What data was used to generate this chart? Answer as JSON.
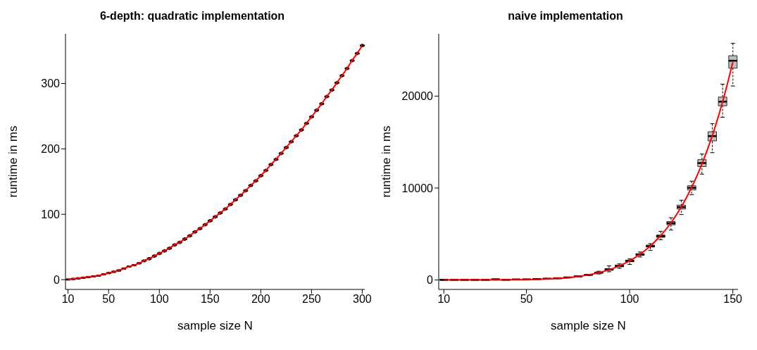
{
  "chart_data": [
    {
      "type": "box",
      "color": "#bebebe",
      "title": "6-depth: quadratic implementation",
      "xlabel": "sample size N",
      "ylabel": "runtime in ms",
      "ylim": [
        -15,
        376
      ],
      "yticks": [
        0,
        100,
        200,
        300
      ],
      "categories": [
        "10",
        null,
        null,
        null,
        null,
        null,
        null,
        null,
        "50",
        null,
        null,
        null,
        null,
        null,
        null,
        null,
        null,
        null,
        "100",
        null,
        null,
        null,
        null,
        null,
        null,
        null,
        null,
        null,
        "150",
        null,
        null,
        null,
        null,
        null,
        null,
        null,
        null,
        null,
        "200",
        null,
        null,
        null,
        null,
        null,
        null,
        null,
        null,
        null,
        "250",
        null,
        null,
        null,
        null,
        null,
        null,
        null,
        null,
        null,
        "300"
      ],
      "boxes": [
        {
          "low": 0,
          "q1": 0,
          "median": 0,
          "q3": 1,
          "high": 1
        },
        {
          "low": 0,
          "q1": 0,
          "median": 1,
          "q3": 2,
          "high": 2
        },
        {
          "low": 1,
          "q1": 1,
          "median": 2,
          "q3": 3,
          "high": 3
        },
        {
          "low": 2,
          "q1": 2,
          "median": 3,
          "q3": 4,
          "high": 4
        },
        {
          "low": 3,
          "q1": 3,
          "median": 4,
          "q3": 5,
          "high": 5
        },
        {
          "low": 4,
          "q1": 4,
          "median": 5,
          "q3": 6,
          "high": 6
        },
        {
          "low": 5,
          "q1": 5,
          "median": 6,
          "q3": 7,
          "high": 7
        },
        {
          "low": 7,
          "q1": 7,
          "median": 8,
          "q3": 9,
          "high": 9
        },
        {
          "low": 9,
          "q1": 9,
          "median": 10,
          "q3": 11,
          "high": 11
        },
        {
          "low": 11,
          "q1": 11,
          "median": 12,
          "q3": 13,
          "high": 13
        },
        {
          "low": 13,
          "q1": 13,
          "median": 14,
          "q3": 15,
          "high": 15
        },
        {
          "low": 16,
          "q1": 16,
          "median": 17,
          "q3": 18,
          "high": 18
        },
        {
          "low": 19,
          "q1": 19,
          "median": 20,
          "q3": 21,
          "high": 21
        },
        {
          "low": 21,
          "q1": 21,
          "median": 22,
          "q3": 23,
          "high": 23
        },
        {
          "low": 24,
          "q1": 24,
          "median": 25,
          "q3": 26,
          "high": 26
        },
        {
          "low": 27,
          "q1": 28,
          "median": 29,
          "q3": 30,
          "high": 30
        },
        {
          "low": 30,
          "q1": 31,
          "median": 32,
          "q3": 33,
          "high": 34
        },
        {
          "low": 34,
          "q1": 35,
          "median": 36,
          "q3": 37,
          "high": 38
        },
        {
          "low": 38,
          "q1": 39,
          "median": 40,
          "q3": 41,
          "high": 42
        },
        {
          "low": 42,
          "q1": 43,
          "median": 44,
          "q3": 45,
          "high": 46
        },
        {
          "low": 46,
          "q1": 47,
          "median": 48,
          "q3": 49,
          "high": 50
        },
        {
          "low": 51,
          "q1": 52,
          "median": 53,
          "q3": 54,
          "high": 55
        },
        {
          "low": 55,
          "q1": 56,
          "median": 57,
          "q3": 58,
          "high": 59
        },
        {
          "low": 60,
          "q1": 61,
          "median": 62,
          "q3": 63,
          "high": 64
        },
        {
          "low": 65,
          "q1": 66,
          "median": 67,
          "q3": 68,
          "high": 69
        },
        {
          "low": 71,
          "q1": 72,
          "median": 73,
          "q3": 74,
          "high": 75
        },
        {
          "low": 76,
          "q1": 77,
          "median": 78,
          "q3": 79,
          "high": 80
        },
        {
          "low": 82,
          "q1": 83,
          "median": 84,
          "q3": 85,
          "high": 86
        },
        {
          "low": 88,
          "q1": 89,
          "median": 90,
          "q3": 91,
          "high": 92
        },
        {
          "low": 94,
          "q1": 95,
          "median": 96,
          "q3": 97,
          "high": 98
        },
        {
          "low": 100,
          "q1": 101,
          "median": 102,
          "q3": 103,
          "high": 104
        },
        {
          "low": 106,
          "q1": 107,
          "median": 108,
          "q3": 109,
          "high": 110
        },
        {
          "low": 113,
          "q1": 114,
          "median": 115,
          "q3": 116,
          "high": 117
        },
        {
          "low": 120,
          "q1": 121,
          "median": 122,
          "q3": 123,
          "high": 124
        },
        {
          "low": 127,
          "q1": 128,
          "median": 129,
          "q3": 130,
          "high": 131
        },
        {
          "low": 134,
          "q1": 135,
          "median": 136,
          "q3": 137,
          "high": 138
        },
        {
          "low": 142,
          "q1": 143,
          "median": 144,
          "q3": 145,
          "high": 146
        },
        {
          "low": 149,
          "q1": 150,
          "median": 151,
          "q3": 152,
          "high": 153
        },
        {
          "low": 157,
          "q1": 158,
          "median": 159,
          "q3": 160,
          "high": 161
        },
        {
          "low": 165,
          "q1": 166,
          "median": 167,
          "q3": 168,
          "high": 169
        },
        {
          "low": 174,
          "q1": 175,
          "median": 176,
          "q3": 177,
          "high": 178
        },
        {
          "low": 182,
          "q1": 183,
          "median": 184,
          "q3": 185,
          "high": 186
        },
        {
          "low": 191,
          "q1": 192,
          "median": 193,
          "q3": 194,
          "high": 195
        },
        {
          "low": 200,
          "q1": 201,
          "median": 202,
          "q3": 203,
          "high": 204
        },
        {
          "low": 209,
          "q1": 210,
          "median": 211,
          "q3": 212,
          "high": 213
        },
        {
          "low": 218,
          "q1": 219,
          "median": 220,
          "q3": 221,
          "high": 222
        },
        {
          "low": 227,
          "q1": 228,
          "median": 229,
          "q3": 230,
          "high": 231
        },
        {
          "low": 237,
          "q1": 238,
          "median": 239,
          "q3": 240,
          "high": 241
        },
        {
          "low": 247,
          "q1": 248,
          "median": 249,
          "q3": 250,
          "high": 251
        },
        {
          "low": 257,
          "q1": 258,
          "median": 259,
          "q3": 260,
          "high": 261
        },
        {
          "low": 267,
          "q1": 268,
          "median": 269,
          "q3": 270,
          "high": 271
        },
        {
          "low": 278,
          "q1": 279,
          "median": 280,
          "q3": 281,
          "high": 282
        },
        {
          "low": 288,
          "q1": 289,
          "median": 290,
          "q3": 291,
          "high": 292
        },
        {
          "low": 299,
          "q1": 300,
          "median": 301,
          "q3": 302,
          "high": 303
        },
        {
          "low": 310,
          "q1": 311,
          "median": 312,
          "q3": 313,
          "high": 314
        },
        {
          "low": 321,
          "q1": 322,
          "median": 323,
          "q3": 324,
          "high": 325
        },
        {
          "low": 333,
          "q1": 334,
          "median": 335,
          "q3": 336,
          "high": 337
        },
        {
          "low": 344,
          "q1": 345,
          "median": 346,
          "q3": 347,
          "high": 348
        },
        {
          "low": 356,
          "q1": 357,
          "median": 358,
          "q3": 359,
          "high": 360
        }
      ],
      "series": [
        {
          "type": "line",
          "color": "#ff0000",
          "values": [
            0,
            1,
            2,
            3,
            4,
            5,
            6,
            8,
            10,
            12,
            14,
            17,
            20,
            22,
            25,
            29,
            32,
            36,
            40,
            44,
            48,
            53,
            57,
            62,
            67,
            73,
            78,
            84,
            90,
            96,
            102,
            108,
            115,
            122,
            129,
            136,
            144,
            151,
            159,
            167,
            176,
            184,
            193,
            202,
            211,
            220,
            229,
            239,
            249,
            259,
            269,
            280,
            290,
            301,
            312,
            323,
            335,
            346,
            358
          ]
        }
      ]
    },
    {
      "type": "box",
      "color": "#bebebe",
      "title": "naive implementation",
      "xlabel": "sample size N",
      "ylabel": "runtime in ms",
      "ylim": [
        -1030,
        26780
      ],
      "yticks": [
        0,
        10000,
        20000
      ],
      "categories": [
        "10",
        null,
        null,
        null,
        null,
        null,
        null,
        null,
        "50",
        null,
        null,
        null,
        null,
        null,
        null,
        null,
        null,
        null,
        "100",
        null,
        null,
        null,
        null,
        null,
        null,
        null,
        null,
        null,
        "150"
      ],
      "boxes": [
        {
          "low": 0,
          "q1": 0,
          "median": 0,
          "q3": 0,
          "high": 1
        },
        {
          "low": 0,
          "q1": 0,
          "median": 0,
          "q3": 0,
          "high": 1
        },
        {
          "low": 0,
          "q1": 0,
          "median": 0,
          "q3": 0,
          "high": 1
        },
        {
          "low": 0,
          "q1": 0,
          "median": 0,
          "q3": 1,
          "high": 1
        },
        {
          "low": 1,
          "q1": 1,
          "median": 1,
          "q3": 2,
          "high": 2
        },
        {
          "low": 3,
          "q1": 3,
          "median": 4,
          "q3": 4,
          "high": 5
        },
        {
          "low": 7,
          "q1": 8,
          "median": 8,
          "q3": 9,
          "high": 10
        },
        {
          "low": 15,
          "q1": 16,
          "median": 17,
          "q3": 18,
          "high": 20
        },
        {
          "low": 28,
          "q1": 31,
          "median": 32,
          "q3": 34,
          "high": 37
        },
        {
          "low": 50,
          "q1": 55,
          "median": 58,
          "q3": 60,
          "high": 65
        },
        {
          "low": 85,
          "q1": 93,
          "median": 97,
          "q3": 100,
          "high": 110
        },
        {
          "low": 140,
          "q1": 150,
          "median": 156,
          "q3": 162,
          "high": 175
        },
        {
          "low": 220,
          "q1": 235,
          "median": 244,
          "q3": 252,
          "high": 270
        },
        {
          "low": 330,
          "q1": 355,
          "median": 370,
          "q3": 385,
          "high": 410
        },
        {
          "low": 480,
          "q1": 520,
          "median": 540,
          "q3": 560,
          "high": 600
        },
        {
          "low": 650,
          "q1": 740,
          "median": 800,
          "q3": 840,
          "high": 950
        },
        {
          "low": 890,
          "q1": 1050,
          "median": 1150,
          "q3": 1230,
          "high": 1530
        },
        {
          "low": 1270,
          "q1": 1430,
          "median": 1530,
          "q3": 1620,
          "high": 1750
        },
        {
          "low": 1690,
          "q1": 1980,
          "median": 2070,
          "q3": 2160,
          "high": 2290
        },
        {
          "low": 2500,
          "q1": 2680,
          "median": 2770,
          "q3": 2860,
          "high": 3040
        },
        {
          "low": 3230,
          "q1": 3580,
          "median": 3680,
          "q3": 3790,
          "high": 3950
        },
        {
          "low": 4380,
          "q1": 4640,
          "median": 4760,
          "q3": 4890,
          "high": 5300
        },
        {
          "low": 5430,
          "q1": 6000,
          "median": 6180,
          "q3": 6350,
          "high": 6770
        },
        {
          "low": 7120,
          "q1": 7720,
          "median": 7930,
          "q3": 8150,
          "high": 8680
        },
        {
          "low": 9270,
          "q1": 9790,
          "median": 10020,
          "q3": 10250,
          "high": 10750
        },
        {
          "low": 11510,
          "q1": 12340,
          "median": 12720,
          "q3": 13090,
          "high": 13700
        },
        {
          "low": 13850,
          "q1": 15130,
          "median": 15650,
          "q3": 16130,
          "high": 17000
        },
        {
          "low": 17700,
          "q1": 18950,
          "median": 19400,
          "q3": 19900,
          "high": 21300
        },
        {
          "low": 21100,
          "q1": 23040,
          "median": 23850,
          "q3": 24400,
          "high": 25750
        }
      ],
      "series": [
        {
          "type": "line",
          "color": "#ff0000",
          "values": [
            0,
            0,
            0,
            0,
            0,
            0,
            10,
            20,
            30,
            60,
            100,
            160,
            240,
            370,
            550,
            785,
            1106,
            1530,
            2080,
            2790,
            3690,
            4810,
            6210,
            7940,
            10040,
            12590,
            15660,
            19330,
            23700
          ]
        }
      ]
    }
  ]
}
